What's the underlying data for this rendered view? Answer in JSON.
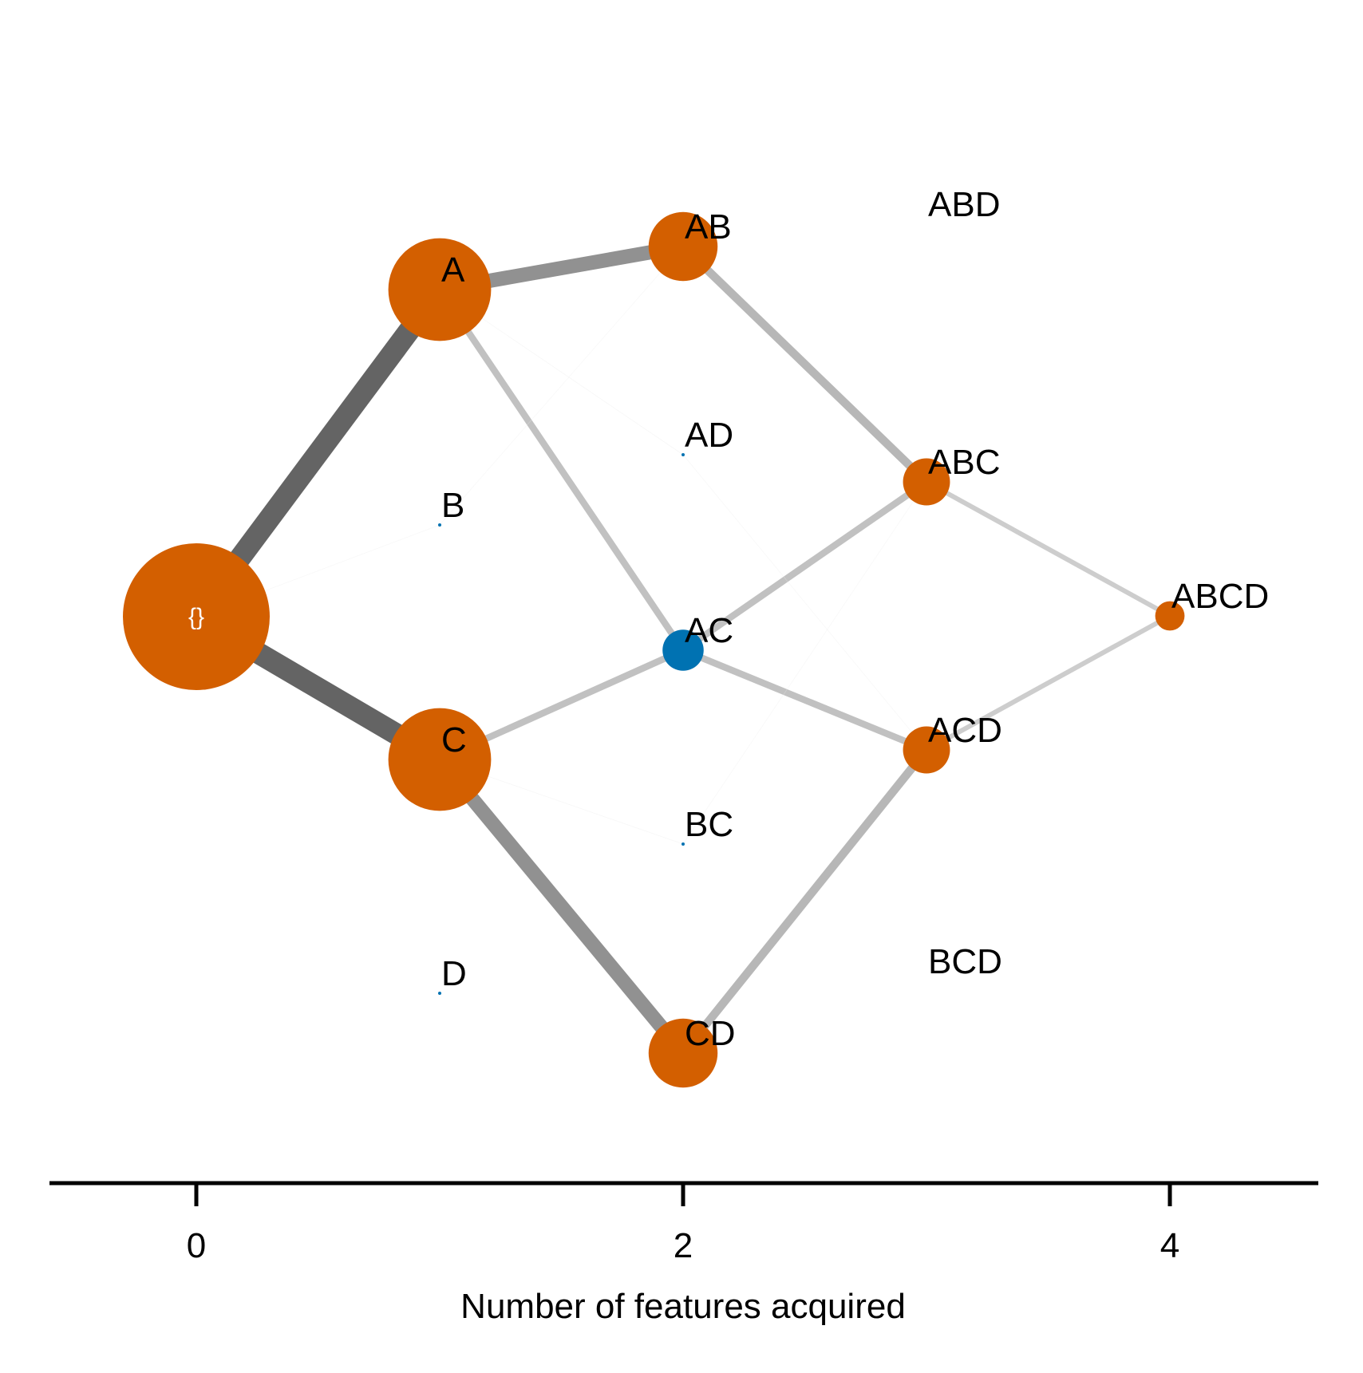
{
  "chart_data": {
    "type": "network",
    "xlabel": "Number of features acquired",
    "x_ticks": [
      "0",
      "2",
      "4"
    ],
    "x_range": [
      -0.6,
      4.6
    ],
    "colors": {
      "observed_state": "#d35f00",
      "highlight_state": "#0072b2",
      "axis": "#000000"
    },
    "nodes": [
      {
        "id": "root",
        "label": "{}",
        "features": 0,
        "size": 1.0,
        "color": "#d35f00"
      },
      {
        "id": "A",
        "label": "A",
        "features": 1,
        "size": 0.7,
        "color": "#d35f00"
      },
      {
        "id": "B",
        "label": "B",
        "features": 1,
        "size": 0.01,
        "color": "#0072b2"
      },
      {
        "id": "C",
        "label": "C",
        "features": 1,
        "size": 0.7,
        "color": "#d35f00"
      },
      {
        "id": "D",
        "label": "D",
        "features": 1,
        "size": 0.01,
        "color": "#0072b2"
      },
      {
        "id": "AB",
        "label": "AB",
        "features": 2,
        "size": 0.47,
        "color": "#d35f00"
      },
      {
        "id": "AD",
        "label": "AD",
        "features": 2,
        "size": 0.02,
        "color": "#0072b2"
      },
      {
        "id": "AC",
        "label": "AC",
        "features": 2,
        "size": 0.28,
        "color": "#0072b2"
      },
      {
        "id": "BC",
        "label": "BC",
        "features": 2,
        "size": 0.02,
        "color": "#0072b2"
      },
      {
        "id": "CD",
        "label": "CD",
        "features": 2,
        "size": 0.47,
        "color": "#d35f00"
      },
      {
        "id": "ABD",
        "label": "ABD",
        "features": 3,
        "size": 0,
        "color": "#d35f00"
      },
      {
        "id": "ABC",
        "label": "ABC",
        "features": 3,
        "size": 0.32,
        "color": "#d35f00"
      },
      {
        "id": "ACD",
        "label": "ACD",
        "features": 3,
        "size": 0.32,
        "color": "#d35f00"
      },
      {
        "id": "BCD",
        "label": "BCD",
        "features": 3,
        "size": 0,
        "color": "#d35f00"
      },
      {
        "id": "ABCD",
        "label": "ABCD",
        "features": 4,
        "size": 0.2,
        "color": "#d35f00"
      }
    ],
    "edges": [
      {
        "from": "root",
        "to": "A",
        "weight": 0.9
      },
      {
        "from": "root",
        "to": "C",
        "weight": 0.9
      },
      {
        "from": "root",
        "to": "B",
        "weight": 0.01
      },
      {
        "from": "A",
        "to": "AB",
        "weight": 0.6
      },
      {
        "from": "A",
        "to": "AC",
        "weight": 0.28
      },
      {
        "from": "A",
        "to": "AD",
        "weight": 0.02
      },
      {
        "from": "B",
        "to": "AB",
        "weight": 0.01
      },
      {
        "from": "C",
        "to": "AC",
        "weight": 0.28
      },
      {
        "from": "C",
        "to": "CD",
        "weight": 0.6
      },
      {
        "from": "C",
        "to": "BC",
        "weight": 0.02
      },
      {
        "from": "AB",
        "to": "ABC",
        "weight": 0.35
      },
      {
        "from": "AC",
        "to": "ABC",
        "weight": 0.28
      },
      {
        "from": "AC",
        "to": "ACD",
        "weight": 0.28
      },
      {
        "from": "AD",
        "to": "ACD",
        "weight": 0.01
      },
      {
        "from": "BC",
        "to": "ABC",
        "weight": 0.01
      },
      {
        "from": "CD",
        "to": "ACD",
        "weight": 0.35
      },
      {
        "from": "ABC",
        "to": "ABCD",
        "weight": 0.2
      },
      {
        "from": "ACD",
        "to": "ABCD",
        "weight": 0.2
      }
    ]
  }
}
